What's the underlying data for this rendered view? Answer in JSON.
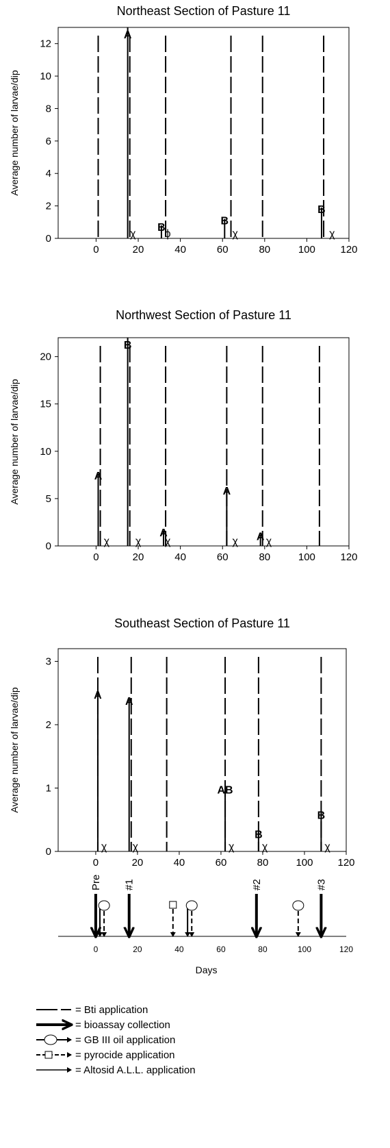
{
  "chart_data": [
    {
      "type": "bar",
      "title": "Northeast Section of Pasture 11",
      "ylabel": "Average number of larvae/dip",
      "xlim": [
        -18,
        120
      ],
      "ylim": [
        0,
        13
      ],
      "xticks": [
        0,
        20,
        40,
        60,
        80,
        100,
        120
      ],
      "yticks": [
        0,
        2,
        4,
        6,
        8,
        10,
        12
      ],
      "bars": [
        {
          "x": 15,
          "value": 13,
          "label": "A"
        },
        {
          "x": 31,
          "value": 0.8,
          "label": "B"
        },
        {
          "x": 61,
          "value": 1.2,
          "label": "B"
        },
        {
          "x": 107,
          "value": 1.9,
          "label": "B"
        }
      ],
      "bti_applications": [
        1,
        16,
        33,
        64,
        79,
        108
      ],
      "annotations": [
        {
          "x": 17.5,
          "text": "χ"
        },
        {
          "x": 34,
          "text": "ϕ"
        },
        {
          "x": 66,
          "text": "χ"
        },
        {
          "x": 112,
          "text": "χ"
        }
      ]
    },
    {
      "type": "bar",
      "title": "Northwest Section of Pasture 11",
      "ylabel": "Average number of larvae/dip",
      "xlim": [
        -18,
        120
      ],
      "ylim": [
        0,
        22
      ],
      "xticks": [
        0,
        20,
        40,
        60,
        80,
        100,
        120
      ],
      "yticks": [
        0,
        5,
        10,
        15,
        20
      ],
      "bars": [
        {
          "x": 1,
          "value": 7.6,
          "label": "A"
        },
        {
          "x": 15,
          "value": 22,
          "label": "B"
        },
        {
          "x": 32,
          "value": 1.6,
          "label": "A"
        },
        {
          "x": 62,
          "value": 6.0,
          "label": "A"
        },
        {
          "x": 78,
          "value": 1.2,
          "label": "A"
        }
      ],
      "bti_applications": [
        2,
        16,
        33,
        62,
        79,
        106
      ],
      "annotations": [
        {
          "x": 5,
          "text": "χ"
        },
        {
          "x": 20,
          "text": "χ"
        },
        {
          "x": 34,
          "text": "χ"
        },
        {
          "x": 66,
          "text": "χ"
        },
        {
          "x": 82,
          "text": "χ"
        }
      ]
    },
    {
      "type": "bar",
      "title": "Southeast Section of Pasture 11",
      "ylabel": "Average number of larvae/dip",
      "xlim": [
        -18,
        120
      ],
      "ylim": [
        0,
        3.2
      ],
      "xticks": [
        0,
        20,
        40,
        60,
        80,
        100,
        120
      ],
      "yticks": [
        0,
        1,
        2,
        3
      ],
      "bars": [
        {
          "x": 1,
          "value": 2.5,
          "label": "A"
        },
        {
          "x": 16,
          "value": 2.4,
          "label": "A"
        },
        {
          "x": 62,
          "value": 1.0,
          "label": "AB"
        },
        {
          "x": 78,
          "value": 0.3,
          "label": "B"
        },
        {
          "x": 108,
          "value": 0.6,
          "label": "B"
        }
      ],
      "bti_applications": [
        1,
        17,
        34,
        62,
        78,
        108
      ],
      "annotations": [
        {
          "x": 4,
          "text": "χ"
        },
        {
          "x": 19,
          "text": "χ"
        },
        {
          "x": 65,
          "text": "χ"
        },
        {
          "x": 81,
          "text": "χ"
        },
        {
          "x": 111,
          "text": "χ"
        }
      ]
    }
  ],
  "timeline": {
    "xlabel": "Days",
    "xlim": [
      -18,
      120
    ],
    "xticks": [
      0,
      20,
      40,
      60,
      80,
      100,
      120
    ],
    "bioassay": [
      {
        "x": 0,
        "label": "Pre"
      },
      {
        "x": 16,
        "label": "#1"
      },
      {
        "x": 77,
        "label": "#2"
      },
      {
        "x": 108,
        "label": "#3"
      }
    ],
    "oil": [
      4,
      46,
      97
    ],
    "pyrocide": [
      37
    ],
    "altosid": [
      2,
      44
    ]
  },
  "legend": [
    {
      "key": "bti",
      "text": "= Bti application"
    },
    {
      "key": "bioassay",
      "text": "= bioassay collection"
    },
    {
      "key": "oil",
      "text": "= GB III oil application"
    },
    {
      "key": "pyrocide",
      "text": "= pyrocide application"
    },
    {
      "key": "altosid",
      "text": "= Altosid A.L.L. application"
    }
  ]
}
